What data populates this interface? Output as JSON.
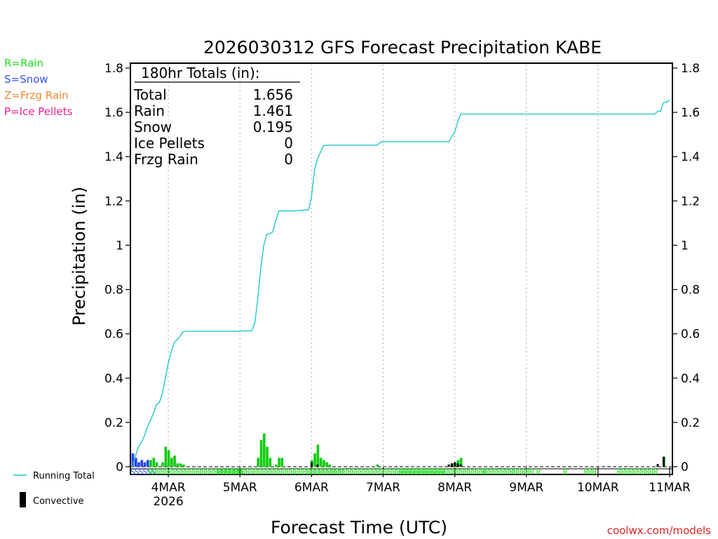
{
  "chart_data": {
    "type": "bar+line",
    "title": "2026030312 GFS Forecast Precipitation KABE",
    "xlabel": "Forecast Time (UTC)",
    "ylabel": "Precipitation (in)",
    "ylim": [
      0,
      1.8
    ],
    "yticks": [
      "0",
      "0.2",
      "0.4",
      "0.6",
      "0.8",
      "1",
      "1.2",
      "1.4",
      "1.6",
      "1.8"
    ],
    "x_unit": "forecast hour",
    "xlim": [
      0,
      180
    ],
    "xticks": [
      {
        "hour": 12,
        "label": "4MAR",
        "sub": "2026"
      },
      {
        "hour": 36,
        "label": "5MAR",
        "sub": ""
      },
      {
        "hour": 60,
        "label": "6MAR",
        "sub": ""
      },
      {
        "hour": 84,
        "label": "7MAR",
        "sub": ""
      },
      {
        "hour": 108,
        "label": "8MAR",
        "sub": ""
      },
      {
        "hour": 132,
        "label": "9MAR",
        "sub": ""
      },
      {
        "hour": 156,
        "label": "10MAR",
        "sub": ""
      },
      {
        "hour": 180,
        "label": "11MAR",
        "sub": ""
      }
    ],
    "legend_types": [
      {
        "text": "R=Rain",
        "color": "#22dd22"
      },
      {
        "text": "S=Snow",
        "color": "#3355ee"
      },
      {
        "text": "Z=Frzg Rain",
        "color": "#ee8833"
      },
      {
        "text": "P=Ice Pellets",
        "color": "#ee2288"
      }
    ],
    "legend_series": [
      {
        "text": "Running Total",
        "color": "#22c8c8"
      },
      {
        "text": "Convective",
        "color": "#000000"
      }
    ],
    "totals": {
      "header": "180hr Totals (in):",
      "rows": [
        {
          "label": "Total",
          "value": "1.656"
        },
        {
          "label": "Rain",
          "value": "1.461"
        },
        {
          "label": "Snow",
          "value": "0.195"
        },
        {
          "label": "Ice Pellets",
          "value": "0"
        },
        {
          "label": "Frzg Rain",
          "value": "0"
        }
      ]
    },
    "running_total": [
      [
        0,
        0
      ],
      [
        1,
        0.05
      ],
      [
        2,
        0.09
      ],
      [
        3,
        0.11
      ],
      [
        4,
        0.14
      ],
      [
        5,
        0.18
      ],
      [
        6,
        0.21
      ],
      [
        7,
        0.24
      ],
      [
        8,
        0.28
      ],
      [
        9,
        0.29
      ],
      [
        10,
        0.33
      ],
      [
        11,
        0.4
      ],
      [
        12,
        0.47
      ],
      [
        13,
        0.52
      ],
      [
        14,
        0.56
      ],
      [
        15,
        0.575
      ],
      [
        16,
        0.59
      ],
      [
        17,
        0.61
      ],
      [
        18,
        0.612
      ],
      [
        24,
        0.612
      ],
      [
        30,
        0.612
      ],
      [
        36,
        0.612
      ],
      [
        40,
        0.614
      ],
      [
        41,
        0.65
      ],
      [
        42,
        0.76
      ],
      [
        43,
        0.9
      ],
      [
        44,
        1.0
      ],
      [
        45,
        1.05
      ],
      [
        46,
        1.052
      ],
      [
        47,
        1.06
      ],
      [
        48,
        1.11
      ],
      [
        49,
        1.155
      ],
      [
        54,
        1.155
      ],
      [
        59,
        1.16
      ],
      [
        60,
        1.22
      ],
      [
        61,
        1.34
      ],
      [
        62,
        1.39
      ],
      [
        63,
        1.42
      ],
      [
        64,
        1.45
      ],
      [
        66,
        1.452
      ],
      [
        82,
        1.452
      ],
      [
        83,
        1.465
      ],
      [
        84,
        1.467
      ],
      [
        106,
        1.467
      ],
      [
        107,
        1.49
      ],
      [
        108,
        1.51
      ],
      [
        109,
        1.56
      ],
      [
        110,
        1.592
      ],
      [
        125,
        1.592
      ],
      [
        150,
        1.592
      ],
      [
        175,
        1.592
      ],
      [
        176,
        1.605
      ],
      [
        177,
        1.605
      ],
      [
        178,
        1.645
      ],
      [
        179,
        1.645
      ],
      [
        180,
        1.656
      ]
    ],
    "bars": [
      {
        "h": 0,
        "v": 0.06,
        "type": "snow"
      },
      {
        "h": 1,
        "v": 0.04,
        "type": "snow"
      },
      {
        "h": 2,
        "v": 0.02,
        "type": "snow"
      },
      {
        "h": 3,
        "v": 0.03,
        "type": "snow"
      },
      {
        "h": 4,
        "v": 0.02,
        "type": "snow"
      },
      {
        "h": 5,
        "v": 0.03,
        "type": "snow"
      },
      {
        "h": 6,
        "v": 0.03,
        "type": "rain"
      },
      {
        "h": 7,
        "v": 0.04,
        "type": "rain"
      },
      {
        "h": 8,
        "v": 0.02,
        "type": "rain"
      },
      {
        "h": 10,
        "v": 0.02,
        "type": "rain"
      },
      {
        "h": 11,
        "v": 0.09,
        "type": "rain"
      },
      {
        "h": 12,
        "v": 0.075,
        "type": "rain"
      },
      {
        "h": 13,
        "v": 0.04,
        "type": "rain"
      },
      {
        "h": 14,
        "v": 0.05,
        "type": "rain"
      },
      {
        "h": 15,
        "v": 0.015,
        "type": "rain"
      },
      {
        "h": 16,
        "v": 0.015,
        "type": "rain"
      },
      {
        "h": 17,
        "v": 0.01,
        "type": "rain"
      },
      {
        "h": 42,
        "v": 0.04,
        "type": "rain"
      },
      {
        "h": 43,
        "v": 0.12,
        "type": "rain"
      },
      {
        "h": 44,
        "v": 0.15,
        "type": "rain"
      },
      {
        "h": 45,
        "v": 0.09,
        "type": "rain"
      },
      {
        "h": 46,
        "v": 0.04,
        "type": "rain"
      },
      {
        "h": 48,
        "v": 0.01,
        "type": "rain"
      },
      {
        "h": 49,
        "v": 0.04,
        "type": "rain"
      },
      {
        "h": 50,
        "v": 0.04,
        "type": "rain"
      },
      {
        "h": 60,
        "v": 0.03,
        "type": "rain"
      },
      {
        "h": 61,
        "v": 0.06,
        "type": "rain"
      },
      {
        "h": 62,
        "v": 0.1,
        "type": "rain"
      },
      {
        "h": 63,
        "v": 0.04,
        "type": "rain"
      },
      {
        "h": 64,
        "v": 0.03,
        "type": "rain"
      },
      {
        "h": 65,
        "v": 0.02,
        "type": "rain"
      },
      {
        "h": 66,
        "v": 0.01,
        "type": "rain"
      },
      {
        "h": 82,
        "v": 0.01,
        "type": "rain"
      },
      {
        "h": 107,
        "v": 0.015,
        "type": "rain"
      },
      {
        "h": 108,
        "v": 0.02,
        "type": "rain"
      },
      {
        "h": 109,
        "v": 0.03,
        "type": "rain"
      },
      {
        "h": 110,
        "v": 0.04,
        "type": "rain"
      },
      {
        "h": 178,
        "v": 0.045,
        "type": "rain"
      }
    ],
    "convective": [
      {
        "h": 60,
        "v": 0.02
      },
      {
        "h": 62,
        "v": 0.01
      },
      {
        "h": 106,
        "v": 0.01
      },
      {
        "h": 107,
        "v": 0.015
      },
      {
        "h": 108,
        "v": 0.02
      },
      {
        "h": 109,
        "v": 0.015
      },
      {
        "h": 110,
        "v": 0.01
      },
      {
        "h": 176,
        "v": 0.012
      },
      {
        "h": 178,
        "v": 0.045
      }
    ],
    "type_marks": [
      {
        "text": "SSSSSS",
        "h": 0,
        "color": "#3355ee"
      },
      {
        "text": "RRRRRRRRRRRRRRRRRRRRRRR",
        "h": 6,
        "color": "#22dd22"
      },
      {
        "text": "RRRRRRRRRRRRRRRRRRRRRRRRRRRRRRR",
        "h": 29,
        "color": "#22dd22"
      },
      {
        "text": "RRRRRRRRRRRRRRRRRRRRRRRRRRRRRRRRRR",
        "h": 59,
        "color": "#22dd22"
      },
      {
        "text": "RRRRRRRRRRRRRRRRRRRRRRRRRRRRRRRRR",
        "h": 90,
        "color": "#22dd22"
      },
      {
        "text": "R",
        "h": 118,
        "color": "#22dd22"
      },
      {
        "text": "R",
        "h": 127,
        "color": "#22dd22"
      },
      {
        "text": "R",
        "h": 136,
        "color": "#22dd22"
      },
      {
        "text": "R",
        "h": 145,
        "color": "#22dd22"
      },
      {
        "text": "RRR",
        "h": 152,
        "color": "#22dd22"
      },
      {
        "text": "RRRRRRRRRR",
        "h": 163,
        "color": "#22dd22"
      }
    ],
    "colors": {
      "rain": "#11cc11",
      "snow": "#2244ee",
      "line": "#22c8c8",
      "convective": "#000000"
    }
  },
  "credit": "coolwx.com/models"
}
